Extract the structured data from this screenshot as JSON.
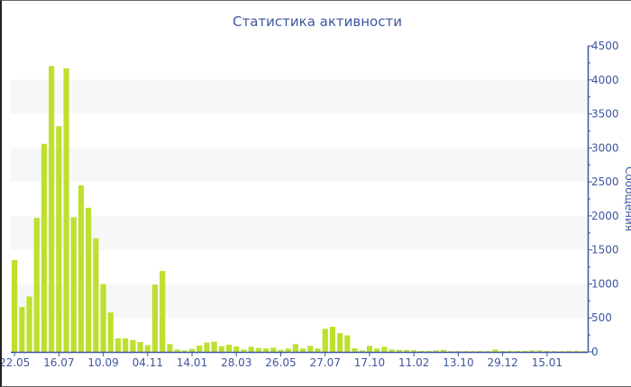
{
  "chart_data": {
    "type": "bar",
    "title": "Статистика активности",
    "xlabel": "",
    "ylabel": "Сообщения",
    "ylim": [
      0,
      4500
    ],
    "yticks": [
      0,
      500,
      1000,
      1500,
      2000,
      2500,
      3000,
      3500,
      4000,
      4500
    ],
    "y_axis_position": "right",
    "grid": "alternating horizontal bands",
    "x_tick_labels": [
      "22.05",
      "16.07",
      "10.09",
      "04.11",
      "14.01",
      "28.03",
      "26.05",
      "27.07",
      "17.10",
      "11.02",
      "13.10",
      "29.12",
      "15.01"
    ],
    "x_tick_every": 6,
    "values": [
      1350,
      660,
      815,
      1970,
      3060,
      4205,
      3320,
      4170,
      1980,
      2450,
      2120,
      1670,
      997,
      580,
      200,
      200,
      175,
      145,
      100,
      990,
      1190,
      115,
      35,
      22,
      45,
      93,
      137,
      150,
      84,
      106,
      80,
      35,
      75,
      57,
      49,
      62,
      31,
      49,
      115,
      49,
      88,
      49,
      340,
      370,
      278,
      243,
      53,
      22,
      88,
      49,
      75,
      35,
      30,
      28,
      25,
      15,
      15,
      22,
      30,
      10,
      12,
      12,
      12,
      12,
      12,
      35,
      15,
      15,
      15,
      15,
      20,
      20,
      15,
      12,
      12,
      15,
      15,
      12
    ],
    "colors": {
      "bar": "#bde02f",
      "axis": "#3e56a0",
      "band": "#f7f7f7"
    }
  }
}
